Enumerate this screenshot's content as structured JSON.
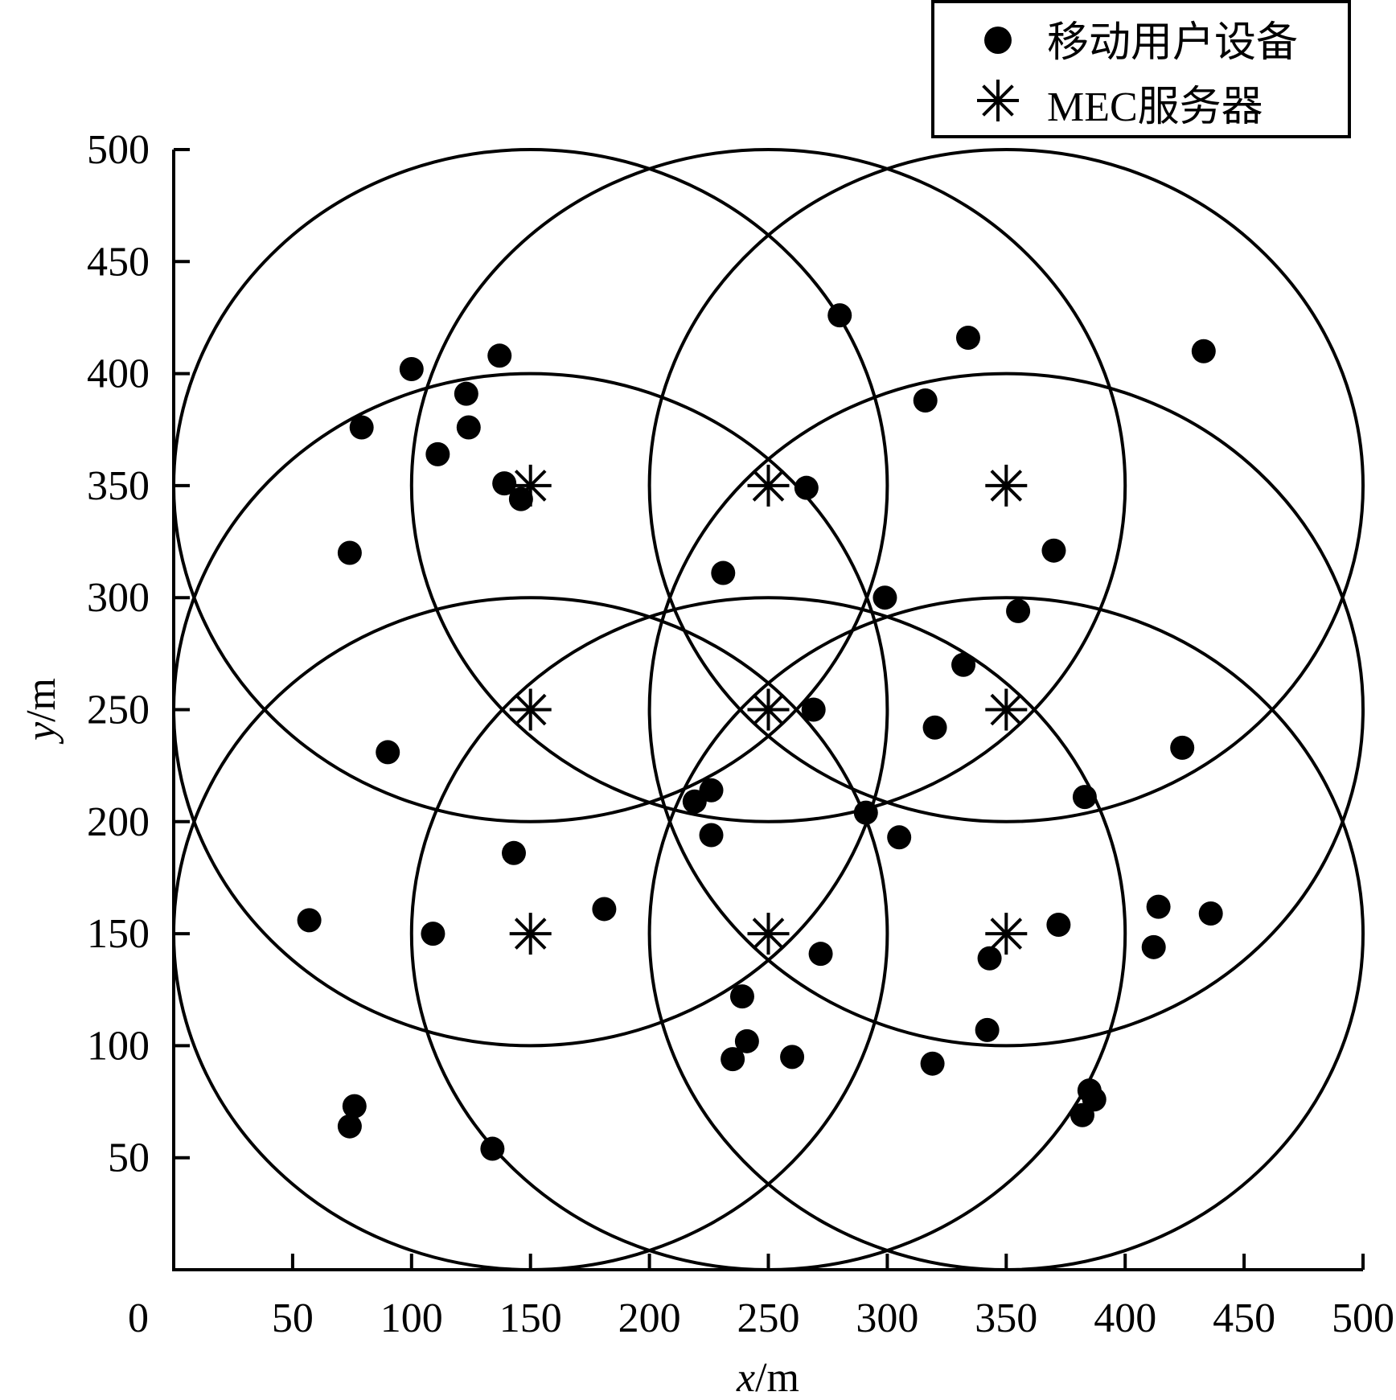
{
  "chart_data": {
    "type": "scatter",
    "title": "",
    "xlabel": {
      "var": "x",
      "unit": "/m"
    },
    "ylabel": {
      "var": "y",
      "unit": "/m"
    },
    "xlim": [
      0,
      500
    ],
    "ylim": [
      0,
      500
    ],
    "origin_label": "0",
    "x_ticks": [
      50,
      100,
      150,
      200,
      250,
      300,
      350,
      400,
      450,
      500
    ],
    "y_ticks": [
      50,
      100,
      150,
      200,
      250,
      300,
      350,
      400,
      450,
      500
    ],
    "grid": false,
    "legend": {
      "placement": "top-right",
      "entries": [
        {
          "label": "移动用户设备",
          "marker": "filled-circle"
        },
        {
          "label": "MEC服务器",
          "marker": "asterisk"
        }
      ]
    },
    "coverage_radius": 150,
    "series": [
      {
        "name": "移动用户设备",
        "marker": "filled-circle",
        "points": [
          [
            100,
            402
          ],
          [
            137,
            408
          ],
          [
            123,
            391
          ],
          [
            79,
            376
          ],
          [
            124,
            376
          ],
          [
            111,
            364
          ],
          [
            139,
            351
          ],
          [
            146,
            344
          ],
          [
            74,
            320
          ],
          [
            90,
            231
          ],
          [
            57,
            156
          ],
          [
            109,
            150
          ],
          [
            76,
            73
          ],
          [
            74,
            64
          ],
          [
            134,
            54
          ],
          [
            143,
            186
          ],
          [
            181,
            161
          ],
          [
            280,
            426
          ],
          [
            334,
            416
          ],
          [
            433,
            410
          ],
          [
            316,
            388
          ],
          [
            266,
            349
          ],
          [
            231,
            311
          ],
          [
            370,
            321
          ],
          [
            299,
            300
          ],
          [
            355,
            294
          ],
          [
            332,
            270
          ],
          [
            269,
            250
          ],
          [
            320,
            242
          ],
          [
            424,
            233
          ],
          [
            226,
            214
          ],
          [
            219,
            209
          ],
          [
            226,
            194
          ],
          [
            291,
            204
          ],
          [
            305,
            193
          ],
          [
            383,
            211
          ],
          [
            414,
            162
          ],
          [
            436,
            159
          ],
          [
            372,
            154
          ],
          [
            412,
            144
          ],
          [
            272,
            141
          ],
          [
            343,
            139
          ],
          [
            239,
            122
          ],
          [
            241,
            102
          ],
          [
            235,
            94
          ],
          [
            260,
            95
          ],
          [
            342,
            107
          ],
          [
            319,
            92
          ],
          [
            385,
            80
          ],
          [
            387,
            76
          ],
          [
            382,
            69
          ]
        ]
      },
      {
        "name": "MEC服务器",
        "marker": "asterisk",
        "points": [
          [
            150,
            350
          ],
          [
            250,
            350
          ],
          [
            350,
            350
          ],
          [
            150,
            250
          ],
          [
            250,
            250
          ],
          [
            350,
            250
          ],
          [
            150,
            150
          ],
          [
            250,
            150
          ],
          [
            350,
            150
          ]
        ]
      }
    ],
    "coverage_centers": [
      [
        150,
        350
      ],
      [
        250,
        350
      ],
      [
        350,
        350
      ],
      [
        150,
        250
      ],
      [
        350,
        250
      ],
      [
        150,
        150
      ],
      [
        250,
        150
      ],
      [
        350,
        150
      ]
    ]
  }
}
